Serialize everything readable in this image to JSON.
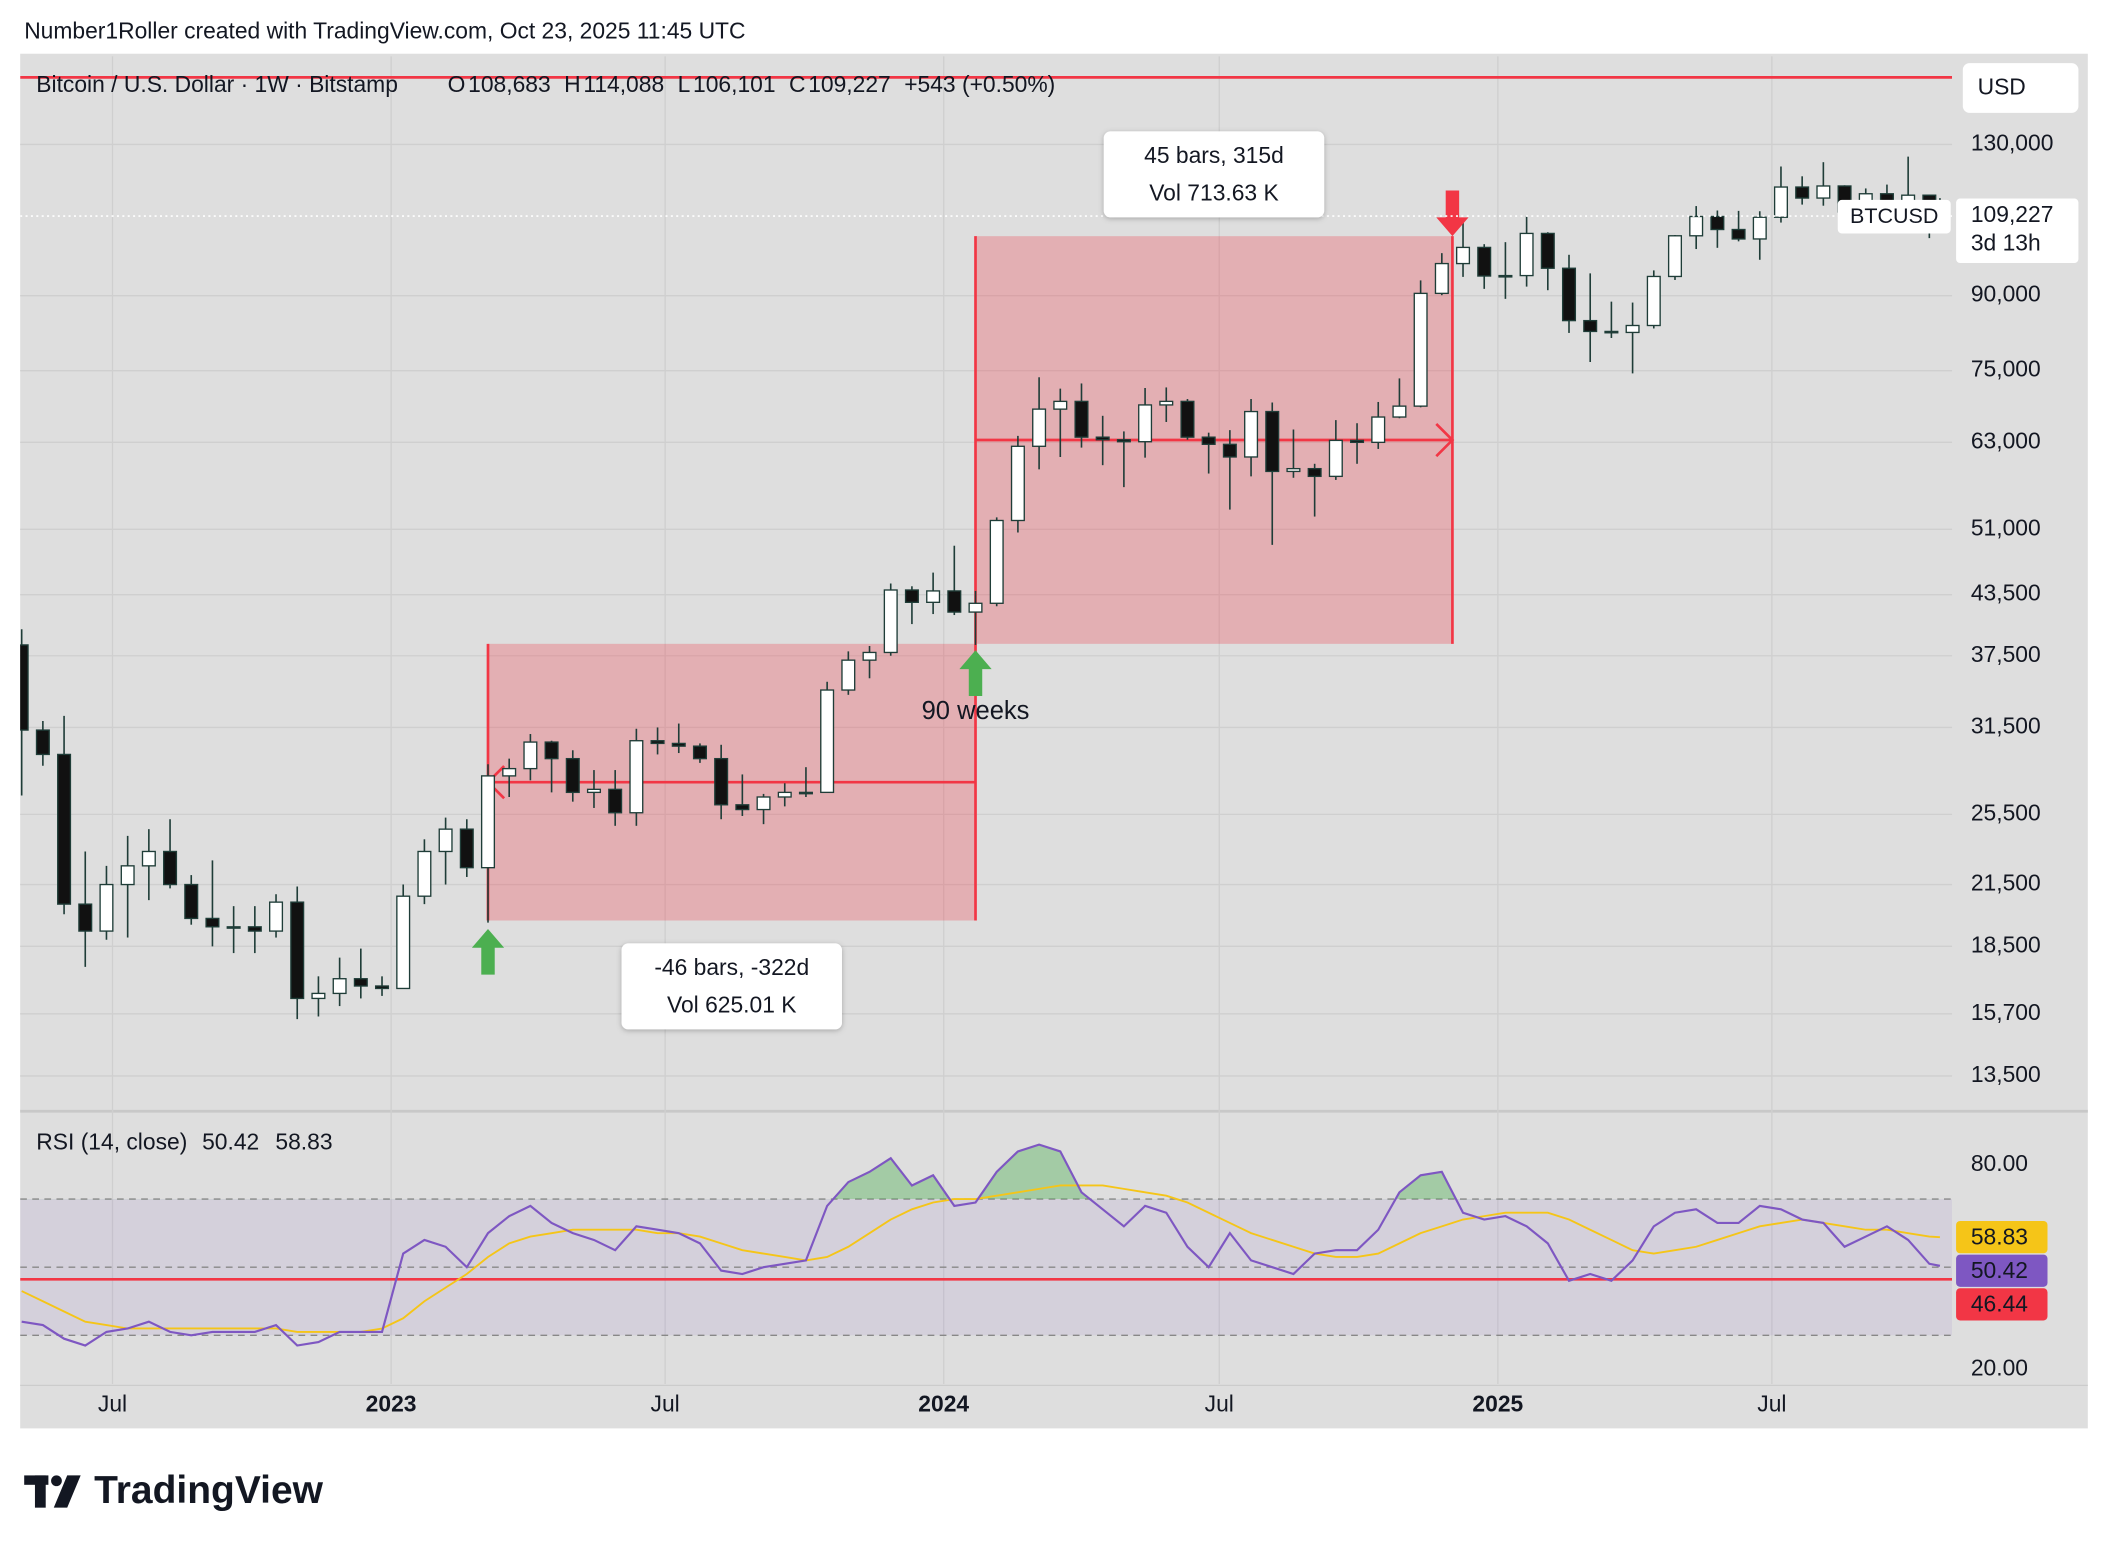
{
  "header": {
    "byline": "Number1Roller created with TradingView.com, Oct 23, 2025 11:45 UTC",
    "brand": "TradingView"
  },
  "chart_data": [
    {
      "type": "candlestick",
      "title": "Bitcoin / U.S. Dollar · 1W · Bitstamp",
      "ohlc_legend": [
        {
          "key": "O",
          "value": "108,683"
        },
        {
          "key": "H",
          "value": "114,088"
        },
        {
          "key": "L",
          "value": "106,101"
        },
        {
          "key": "C",
          "value": "109,227"
        }
      ],
      "change": "+543 (+0.50%)",
      "legend_color": "#089981",
      "currency": "USD",
      "symbol": "BTCUSD",
      "last_price_label": "109,227",
      "countdown": "3d 13h",
      "x": [
        "2022-05-02",
        "2022-05-16",
        "2022-05-30",
        "2022-06-13",
        "2022-06-27",
        "2022-07-11",
        "2022-07-25",
        "2022-08-08",
        "2022-08-22",
        "2022-09-05",
        "2022-09-19",
        "2022-10-03",
        "2022-10-17",
        "2022-10-31",
        "2022-11-14",
        "2022-11-28",
        "2022-12-12",
        "2022-12-26",
        "2023-01-09",
        "2023-01-23",
        "2023-02-06",
        "2023-02-20",
        "2023-03-06",
        "2023-03-20",
        "2023-04-03",
        "2023-04-17",
        "2023-05-01",
        "2023-05-15",
        "2023-05-29",
        "2023-06-12",
        "2023-06-26",
        "2023-07-10",
        "2023-07-24",
        "2023-08-07",
        "2023-08-21",
        "2023-09-04",
        "2023-09-18",
        "2023-10-02",
        "2023-10-16",
        "2023-10-30",
        "2023-11-13",
        "2023-11-27",
        "2023-12-11",
        "2023-12-25",
        "2024-01-08",
        "2024-01-22",
        "2024-02-05",
        "2024-02-19",
        "2024-03-04",
        "2024-03-18",
        "2024-04-01",
        "2024-04-15",
        "2024-04-29",
        "2024-05-13",
        "2024-05-27",
        "2024-06-10",
        "2024-06-24",
        "2024-07-08",
        "2024-07-22",
        "2024-08-05",
        "2024-08-19",
        "2024-09-02",
        "2024-09-16",
        "2024-09-30",
        "2024-10-14",
        "2024-10-28",
        "2024-11-11",
        "2024-11-25",
        "2024-12-09",
        "2024-12-23",
        "2025-01-06",
        "2025-01-20",
        "2025-02-03",
        "2025-02-17",
        "2025-03-03",
        "2025-03-17",
        "2025-03-31",
        "2025-04-14",
        "2025-04-28",
        "2025-05-12",
        "2025-05-26",
        "2025-06-09",
        "2025-06-23",
        "2025-07-07",
        "2025-07-21",
        "2025-08-04",
        "2025-08-18",
        "2025-09-01",
        "2025-09-15",
        "2025-09-29",
        "2025-10-13",
        "2025-10-20"
      ],
      "open": [
        38500,
        31300,
        29500,
        20500,
        19200,
        21500,
        22500,
        23300,
        21500,
        19800,
        19400,
        19400,
        19200,
        20600,
        16300,
        16500,
        17100,
        16800,
        16700,
        20900,
        23300,
        24600,
        22400,
        28000,
        28500,
        30400,
        29200,
        26900,
        27100,
        25600,
        30500,
        30300,
        30100,
        29200,
        26100,
        25800,
        26600,
        26900,
        26900,
        34500,
        37100,
        37800,
        44000,
        42700,
        43900,
        41700,
        42600,
        52100,
        62400,
        68300,
        69600,
        63800,
        63400,
        63100,
        69000,
        69600,
        63800,
        62700,
        60800,
        67900,
        58700,
        59100,
        58000,
        63300,
        63000,
        67000,
        68800,
        90500,
        97300,
        101200,
        94400,
        94500,
        104700,
        96200,
        84700,
        82500,
        82300,
        83700,
        94300,
        104100,
        109100,
        105700,
        103300,
        108900,
        117200,
        114100,
        117500,
        110300,
        115300,
        112200,
        114900,
        108683
      ],
      "high": [
        40000,
        32000,
        32400,
        23300,
        22500,
        24200,
        24600,
        25200,
        22000,
        22800,
        20400,
        20400,
        21000,
        21400,
        17200,
        18000,
        18400,
        17200,
        21500,
        24000,
        25300,
        25200,
        28800,
        29200,
        31000,
        30500,
        29800,
        28400,
        28400,
        31400,
        31500,
        31800,
        30300,
        30200,
        28100,
        26800,
        27500,
        28600,
        35200,
        37900,
        38400,
        44700,
        44400,
        45900,
        49000,
        43900,
        52500,
        64000,
        73800,
        71800,
        72700,
        67200,
        64700,
        71900,
        72000,
        70000,
        64500,
        64900,
        70000,
        69400,
        65000,
        59800,
        66500,
        66000,
        69500,
        73600,
        93400,
        99800,
        108300,
        102000,
        102500,
        109300,
        105000,
        99400,
        95000,
        88700,
        88500,
        95700,
        104300,
        111900,
        110700,
        110600,
        110500,
        123200,
        120300,
        124500,
        117700,
        116800,
        117900,
        126200,
        115000,
        114088
      ],
      "low": [
        26700,
        28700,
        20000,
        17600,
        18800,
        18900,
        20700,
        21300,
        19500,
        18500,
        18200,
        18200,
        18900,
        15500,
        15600,
        16000,
        16300,
        16400,
        16700,
        20500,
        21500,
        21900,
        19600,
        26600,
        27700,
        26900,
        26300,
        25900,
        24800,
        24800,
        29500,
        29600,
        28900,
        25200,
        25400,
        24900,
        26000,
        26600,
        26900,
        34100,
        35500,
        37500,
        40500,
        41500,
        41400,
        38500,
        42300,
        50600,
        59000,
        60800,
        62200,
        59600,
        56500,
        60700,
        66200,
        63400,
        58400,
        53500,
        58000,
        49100,
        57800,
        52600,
        57500,
        59800,
        62000,
        66800,
        68600,
        90100,
        94200,
        91500,
        89300,
        92000,
        91200,
        82200,
        76600,
        81200,
        74500,
        83100,
        93500,
        100800,
        101100,
        102700,
        98200,
        107500,
        112300,
        112000,
        107300,
        107300,
        108600,
        111600,
        103500,
        106101
      ],
      "close": [
        31300,
        29500,
        20500,
        19200,
        21500,
        22500,
        23300,
        21500,
        19800,
        19400,
        19400,
        19200,
        20600,
        16300,
        16500,
        17100,
        16800,
        16700,
        20900,
        23300,
        24600,
        22400,
        28000,
        28500,
        30400,
        29200,
        26900,
        27100,
        25600,
        30500,
        30300,
        30100,
        29200,
        26100,
        25800,
        26600,
        26900,
        26900,
        34500,
        37100,
        37800,
        44000,
        42700,
        43900,
        41700,
        42600,
        52100,
        62400,
        68300,
        69600,
        63800,
        63400,
        63100,
        69000,
        69600,
        63800,
        62700,
        60800,
        67900,
        58700,
        59100,
        58000,
        63300,
        63000,
        67000,
        68800,
        90500,
        97300,
        101200,
        94400,
        94500,
        104700,
        96200,
        84700,
        82500,
        82300,
        83700,
        94300,
        104100,
        109100,
        105700,
        103300,
        108900,
        117200,
        114100,
        117500,
        110300,
        115300,
        112200,
        114900,
        108700,
        109227
      ],
      "up_color": "#ffffff",
      "down_color": "#111111",
      "border_color": "#1f3d38",
      "xlim": [
        "2022-05-01",
        "2025-10-28"
      ],
      "xticks": [
        {
          "value": "2022-07-01",
          "label": "Jul"
        },
        {
          "value": "2023-01-01",
          "label": "2023"
        },
        {
          "value": "2023-07-01",
          "label": "Jul"
        },
        {
          "value": "2024-01-01",
          "label": "2024"
        },
        {
          "value": "2024-07-01",
          "label": "Jul"
        },
        {
          "value": "2025-01-01",
          "label": "2025"
        },
        {
          "value": "2025-07-01",
          "label": "Jul"
        }
      ],
      "ylim": [
        12430,
        161000
      ],
      "log_scale": true,
      "yticks": [
        {
          "value": 130000,
          "label": "130,000"
        },
        {
          "value": 90000,
          "label": "90,000"
        },
        {
          "value": 75000,
          "label": "75,000"
        },
        {
          "value": 63000,
          "label": "63,000"
        },
        {
          "value": 51000,
          "label": "51,000"
        },
        {
          "value": 43500,
          "label": "43,500"
        },
        {
          "value": 37500,
          "label": "37,500"
        },
        {
          "value": 31500,
          "label": "31,500"
        },
        {
          "value": 25500,
          "label": "25,500"
        },
        {
          "value": 21500,
          "label": "21,500"
        },
        {
          "value": 18500,
          "label": "18,500"
        },
        {
          "value": 15700,
          "label": "15,700"
        },
        {
          "value": 13500,
          "label": "13,500"
        }
      ],
      "grid": true,
      "hlines": [
        {
          "value": 153000,
          "color": "#f23645"
        }
      ],
      "ranges": [
        {
          "from": "2024-01-22",
          "to": "2023-03-06",
          "low": 19700,
          "high": 38600,
          "label": "-46 bars, -322d",
          "vol": "Vol 625.01 K",
          "color": "#f23645"
        },
        {
          "from": "2024-01-22",
          "to": "2024-12-02",
          "low": 38600,
          "high": 104000,
          "label": "45 bars, 315d",
          "vol": "Vol 713.63 K",
          "color": "#f23645"
        }
      ],
      "arrows": [
        {
          "x": "2023-03-06",
          "price": 19300,
          "direction": "up",
          "color": "#4caf50"
        },
        {
          "x": "2024-01-22",
          "price": 38000,
          "direction": "up",
          "color": "#4caf50"
        },
        {
          "x": "2024-12-02",
          "price": 104000,
          "direction": "down",
          "color": "#f23645"
        }
      ],
      "notes": [
        {
          "text": "90 weeks",
          "x": "2024-01-22",
          "price": 32700
        }
      ]
    },
    {
      "type": "line",
      "title": "RSI (14, close)",
      "series": [
        {
          "color": "#7e57c2",
          "last_label": "50.42",
          "values": [
            34,
            33,
            29,
            27,
            31,
            32,
            34,
            31,
            30,
            31,
            31,
            31,
            33,
            27,
            28,
            31,
            31,
            31,
            54,
            58,
            56,
            50,
            60,
            65,
            68,
            63,
            60,
            58,
            55,
            62,
            61,
            60,
            57,
            49,
            48,
            50,
            51,
            52,
            68,
            75,
            78,
            82,
            74,
            77,
            68,
            69,
            78,
            84,
            86,
            84,
            72,
            67,
            62,
            68,
            66,
            56,
            50,
            60,
            52,
            50,
            48,
            54,
            55,
            55,
            61,
            72,
            77,
            78,
            66,
            64,
            65,
            62,
            57,
            46,
            48,
            46,
            52,
            62,
            66,
            67,
            63,
            63,
            68,
            67,
            64,
            63,
            56,
            59,
            62,
            58,
            51,
            50.42
          ]
        },
        {
          "color": "#f5c518",
          "last_label": "58.83",
          "values": [
            43,
            40,
            37,
            34,
            33,
            32,
            32,
            32,
            32,
            32,
            32,
            32,
            32,
            31,
            31,
            31,
            31,
            32,
            35,
            40,
            44,
            48,
            53,
            57,
            59,
            60,
            61,
            61,
            61,
            61,
            60,
            60,
            59,
            57,
            55,
            54,
            53,
            52,
            53,
            56,
            60,
            64,
            67,
            69,
            70,
            70,
            71,
            72,
            73,
            74,
            74,
            74,
            73,
            72,
            71,
            69,
            66,
            63,
            60,
            58,
            56,
            54,
            53,
            53,
            54,
            57,
            60,
            62,
            64,
            65,
            66,
            66,
            66,
            64,
            61,
            58,
            55,
            54,
            55,
            56,
            58,
            60,
            62,
            63,
            64,
            63,
            62,
            61,
            61,
            60,
            59,
            58.83
          ]
        }
      ],
      "ylim": [
        14.9,
        95.4
      ],
      "yticks": [
        {
          "value": 80,
          "label": "80.00"
        },
        {
          "value": 20,
          "label": "20.00"
        }
      ],
      "levels": [
        70,
        50,
        30
      ],
      "band": [
        30,
        70
      ],
      "hlines": [
        {
          "value": 46.44,
          "label": "46.44",
          "color": "#f23645"
        }
      ]
    }
  ]
}
